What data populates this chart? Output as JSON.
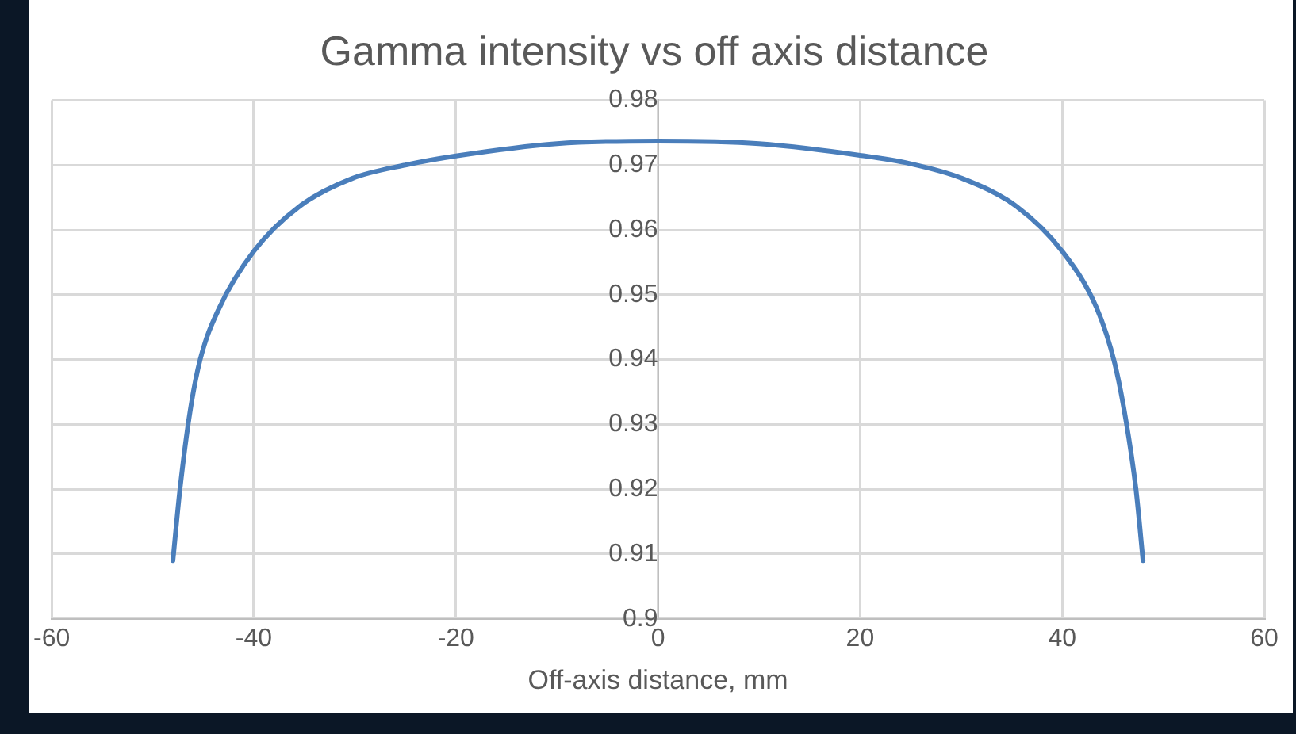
{
  "chart_data": {
    "type": "line",
    "title": "Gamma intensity vs off axis distance",
    "xlabel": "Off-axis distance, mm",
    "series": [
      {
        "color": "#4a7ebb",
        "x": [
          -48,
          -47.3,
          -46.3,
          -45.3,
          -43.4,
          -40,
          -35.5,
          -30.3,
          -25,
          -20,
          -10,
          0,
          10,
          20,
          25,
          30,
          35.5,
          40,
          43.4,
          45.2,
          46.3,
          47.3,
          48
        ],
        "values": [
          0.909,
          0.92,
          0.932,
          0.94,
          0.948,
          0.9567,
          0.9636,
          0.9679,
          0.97,
          0.9714,
          0.9733,
          0.9737,
          0.9733,
          0.9715,
          0.9702,
          0.968,
          0.9636,
          0.9567,
          0.948,
          0.9394,
          0.9307,
          0.92,
          0.909
        ]
      }
    ],
    "xlim": [
      -60,
      60
    ],
    "xticks": [
      -60,
      -40,
      -20,
      0,
      20,
      40,
      60
    ],
    "ylim": [
      0.9,
      0.98
    ],
    "yticks": [
      0.9,
      0.91,
      0.92,
      0.93,
      0.94,
      0.95,
      0.96,
      0.97,
      0.98
    ],
    "grid": true,
    "legend": false,
    "marker": "none",
    "line_style": "solid"
  }
}
